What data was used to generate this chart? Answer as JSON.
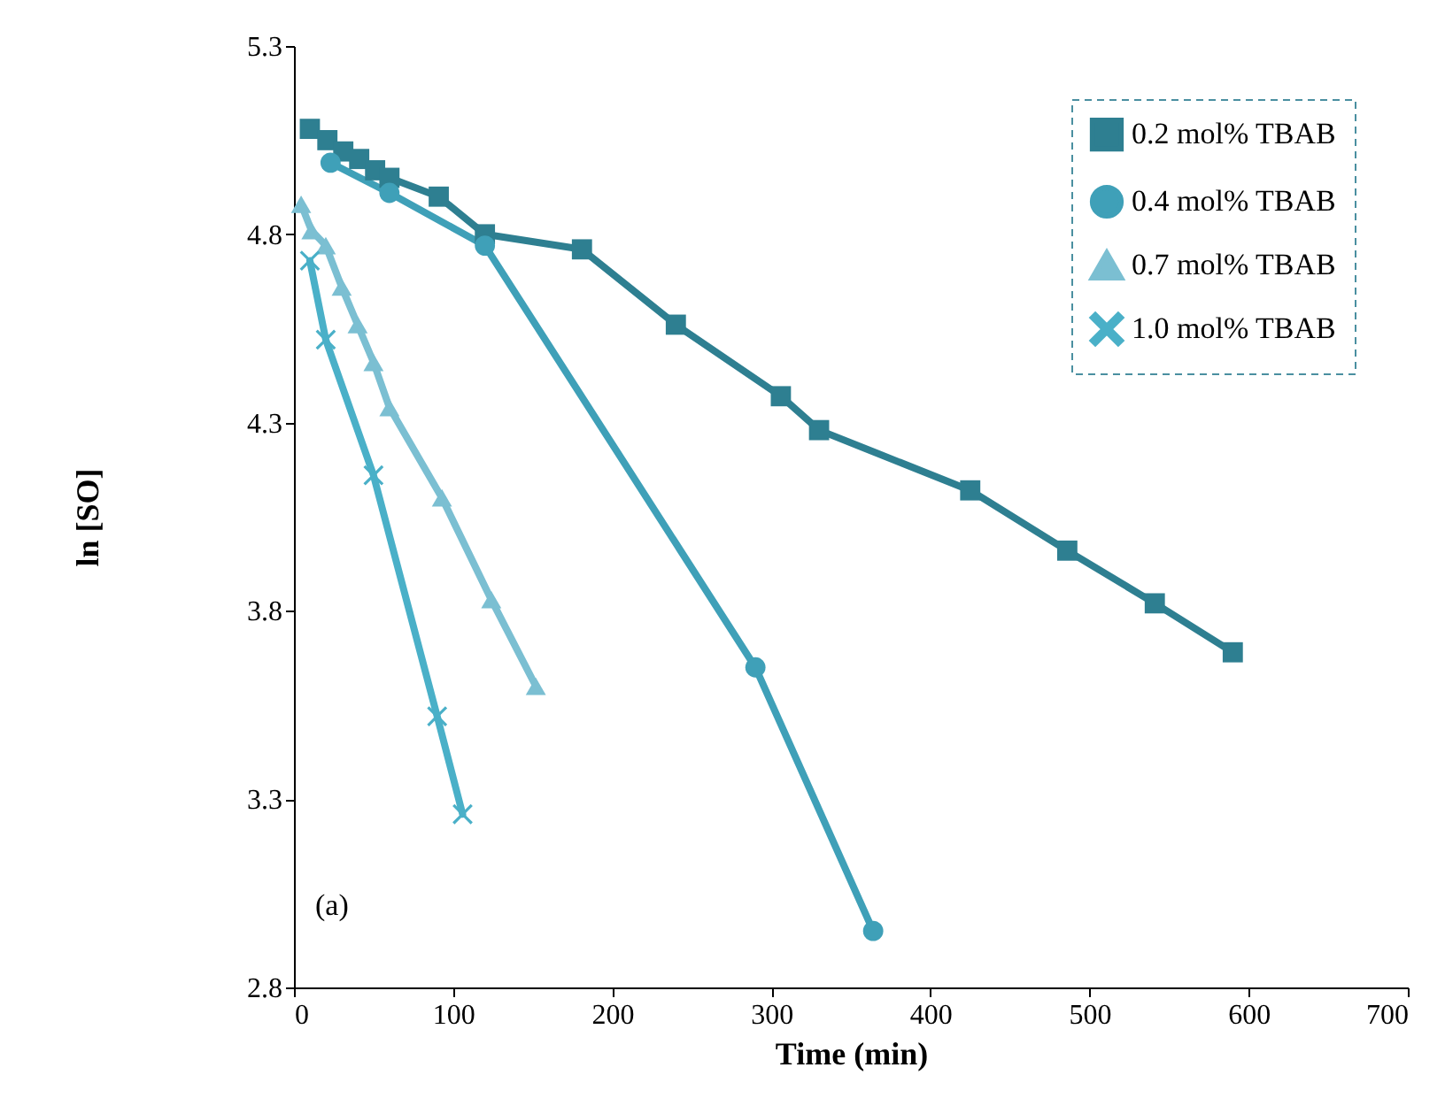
{
  "chart_data": {
    "type": "line",
    "xlabel": "Time (min)",
    "ylabel": "ln [SO]",
    "xlim": [
      0,
      700
    ],
    "xticks": [
      0,
      100,
      200,
      300,
      400,
      500,
      600,
      700
    ],
    "ylim": [
      2.8,
      5.3
    ],
    "yticks": [
      2.8,
      3.3,
      3.8,
      4.3,
      4.8,
      5.3
    ],
    "grid": false,
    "legend": "top right",
    "annotations": [
      "(a)"
    ],
    "series": [
      {
        "name": "0.2 mol% TBAB",
        "color": "#2e7f91",
        "marker": "square",
        "x": [
          10,
          21,
          31,
          41,
          51,
          60,
          91,
          120,
          181,
          240,
          306,
          330,
          425,
          486,
          541,
          590
        ],
        "values": [
          5.08,
          5.05,
          5.02,
          5.0,
          4.97,
          4.95,
          4.9,
          4.8,
          4.76,
          4.56,
          4.37,
          4.28,
          4.12,
          3.96,
          3.82,
          3.69
        ]
      },
      {
        "name": "0.4 mol% TBAB",
        "color": "#3fa0b8",
        "marker": "circle",
        "x": [
          23,
          60,
          120,
          290,
          364
        ],
        "values": [
          4.99,
          4.91,
          4.77,
          3.65,
          2.95
        ]
      },
      {
        "name": "0.7 mol% TBAB",
        "color": "#7bbfd2",
        "marker": "triangle",
        "x": [
          4.5,
          11,
          20,
          30,
          40,
          50,
          60,
          93,
          124,
          152
        ],
        "values": [
          4.88,
          4.81,
          4.77,
          4.66,
          4.56,
          4.46,
          4.34,
          4.1,
          3.83,
          3.6
        ]
      },
      {
        "name": "1.0 mol% TBAB",
        "color": "#4ab0c8",
        "marker": "cross",
        "x": [
          10,
          20,
          50,
          90,
          106
        ],
        "values": [
          4.73,
          4.52,
          4.16,
          3.52,
          3.26
        ]
      }
    ]
  }
}
